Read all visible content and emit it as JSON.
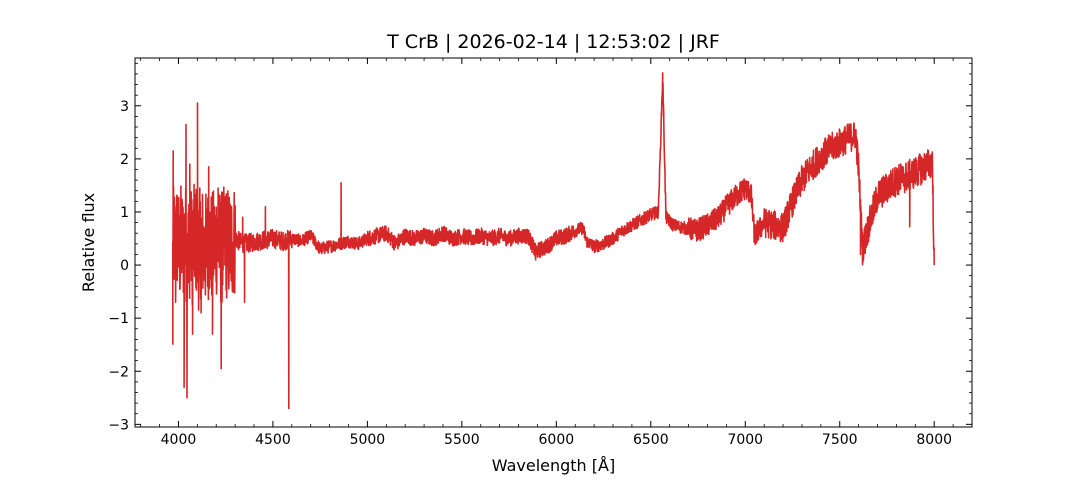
{
  "chart_data": {
    "type": "line",
    "title": "T CrB | 2026-02-14 | 12:53:02 | JRF",
    "xlabel": "Wavelength [Å]",
    "ylabel": "Relative flux",
    "xlim": [
      3770,
      8200
    ],
    "ylim": [
      -3.05,
      3.9
    ],
    "x_ticks": [
      4000,
      4500,
      5000,
      5500,
      6000,
      6500,
      7000,
      7500,
      8000
    ],
    "x_tick_labels": [
      "4000",
      "4500",
      "5000",
      "5500",
      "6000",
      "6500",
      "7000",
      "7500",
      "8000"
    ],
    "y_ticks": [
      -3,
      -2,
      -1,
      0,
      1,
      2,
      3
    ],
    "y_tick_labels": [
      "−3",
      "−2",
      "−1",
      "0",
      "1",
      "2",
      "3"
    ],
    "grid": false,
    "legend": "none",
    "series_color": "#d62728",
    "series": [
      {
        "x": [
          3970,
          3975,
          3985,
          3995,
          4005,
          4015,
          4025,
          4035,
          4045,
          4060,
          4075,
          4090,
          4105,
          4120,
          4140,
          4160,
          4180,
          4200,
          4225,
          4250,
          4275,
          4300,
          4340,
          4380,
          4420,
          4460,
          4500,
          4550,
          4600,
          4650,
          4700,
          4750,
          4800,
          4850,
          4900,
          4950,
          5000,
          5050,
          5100,
          5150,
          5200,
          5250,
          5300,
          5350,
          5400,
          5450,
          5500,
          5550,
          5600,
          5650,
          5700,
          5750,
          5800,
          5850,
          5890,
          5950,
          6000,
          6050,
          6100,
          6140,
          6160,
          6200,
          6250,
          6300,
          6350,
          6400,
          6450,
          6500,
          6540,
          6563,
          6580,
          6620,
          6680,
          6740,
          6800,
          6860,
          6900,
          6950,
          7000,
          7030,
          7050,
          7060,
          7100,
          7150,
          7200,
          7250,
          7300,
          7350,
          7400,
          7450,
          7500,
          7550,
          7585,
          7600,
          7620,
          7650,
          7700,
          7750,
          7800,
          7850,
          7900,
          7950,
          7990,
          8000
        ],
        "y": [
          0.1,
          0.5,
          0.3,
          0.6,
          0.2,
          0.5,
          0.3,
          0.6,
          0.2,
          0.45,
          0.3,
          0.55,
          0.2,
          0.5,
          0.25,
          0.45,
          0.3,
          0.5,
          0.3,
          0.45,
          0.35,
          0.5,
          0.4,
          0.42,
          0.45,
          0.48,
          0.5,
          0.45,
          0.5,
          0.45,
          0.55,
          0.3,
          0.35,
          0.4,
          0.45,
          0.4,
          0.5,
          0.55,
          0.6,
          0.4,
          0.55,
          0.5,
          0.55,
          0.5,
          0.6,
          0.5,
          0.55,
          0.5,
          0.55,
          0.5,
          0.55,
          0.5,
          0.55,
          0.55,
          0.25,
          0.35,
          0.5,
          0.55,
          0.65,
          0.7,
          0.45,
          0.35,
          0.4,
          0.5,
          0.65,
          0.75,
          0.85,
          0.95,
          1.0,
          3.55,
          0.9,
          0.75,
          0.7,
          0.65,
          0.75,
          0.9,
          1.1,
          1.3,
          1.45,
          1.35,
          0.5,
          0.6,
          0.8,
          0.75,
          0.7,
          1.2,
          1.6,
          1.85,
          2.05,
          2.2,
          2.3,
          2.4,
          2.45,
          1.8,
          0.3,
          0.7,
          1.3,
          1.45,
          1.6,
          1.65,
          1.75,
          1.85,
          1.95,
          0.0
        ],
        "noise_regions": [
          {
            "range": [
              3970,
              4300
            ],
            "amplitude": 1.1
          },
          {
            "range": [
              4300,
              4600
            ],
            "amplitude": 0.18
          },
          {
            "range": [
              4600,
              5000
            ],
            "amplitude": 0.12
          },
          {
            "range": [
              5000,
              6100
            ],
            "amplitude": 0.15
          },
          {
            "range": [
              6100,
              6700
            ],
            "amplitude": 0.12
          },
          {
            "range": [
              6700,
              7100
            ],
            "amplitude": 0.22
          },
          {
            "range": [
              7100,
              7600
            ],
            "amplitude": 0.28
          },
          {
            "range": [
              7600,
              8000
            ],
            "amplitude": 0.3
          }
        ],
        "spikes": [
          {
            "x": 3970,
            "y": -1.5
          },
          {
            "x": 3972,
            "y": 2.15
          },
          {
            "x": 3985,
            "y": -0.7
          },
          {
            "x": 4000,
            "y": 1.2
          },
          {
            "x": 4030,
            "y": -2.3
          },
          {
            "x": 4040,
            "y": 2.65
          },
          {
            "x": 4045,
            "y": -2.5
          },
          {
            "x": 4060,
            "y": 1.9
          },
          {
            "x": 4075,
            "y": -1.3
          },
          {
            "x": 4101,
            "y": 3.05
          },
          {
            "x": 4120,
            "y": -0.9
          },
          {
            "x": 4160,
            "y": 1.85
          },
          {
            "x": 4180,
            "y": -1.3
          },
          {
            "x": 4210,
            "y": 1.45
          },
          {
            "x": 4226,
            "y": -1.95
          },
          {
            "x": 4250,
            "y": 0.95
          },
          {
            "x": 4340,
            "y": 0.9
          },
          {
            "x": 4350,
            "y": -0.7
          },
          {
            "x": 4460,
            "y": 1.1
          },
          {
            "x": 4584,
            "y": -2.7
          },
          {
            "x": 4861,
            "y": 1.55
          },
          {
            "x": 5890,
            "y": 0.1
          },
          {
            "x": 6563,
            "y": 3.62
          },
          {
            "x": 6565,
            "y": 3.3
          },
          {
            "x": 7610,
            "y": 0.2
          },
          {
            "x": 7870,
            "y": 0.72
          },
          {
            "x": 7990,
            "y": 2.1
          },
          {
            "x": 8000,
            "y": 0.0
          }
        ]
      }
    ]
  }
}
